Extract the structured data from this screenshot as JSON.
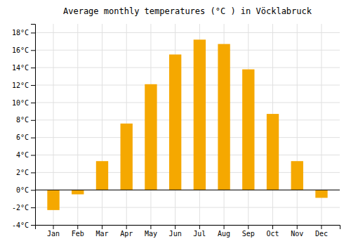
{
  "chart_data": {
    "type": "bar",
    "title": "Average monthly temperatures (°C ) in Vöcklabruck",
    "categories": [
      "Jan",
      "Feb",
      "Mar",
      "Apr",
      "May",
      "Jun",
      "Jul",
      "Aug",
      "Sep",
      "Oct",
      "Nov",
      "Dec"
    ],
    "values": [
      -2.3,
      -0.5,
      3.3,
      7.6,
      12.1,
      15.5,
      17.2,
      16.7,
      13.8,
      8.7,
      3.3,
      -0.9
    ],
    "color": "#F5A800",
    "ylim": [
      -4,
      19
    ],
    "yticks": [
      {
        "value": -4,
        "label": "-4°C"
      },
      {
        "value": -2,
        "label": "-2°C"
      },
      {
        "value": 0,
        "label": "0°C"
      },
      {
        "value": 2,
        "label": "2°C"
      },
      {
        "value": 4,
        "label": "4°C"
      },
      {
        "value": 6,
        "label": "6°C"
      },
      {
        "value": 8,
        "label": "8°C"
      },
      {
        "value": 10,
        "label": "10°C"
      },
      {
        "value": 12,
        "label": "12°C"
      },
      {
        "value": 14,
        "label": "14°C"
      },
      {
        "value": 16,
        "label": "16°C"
      },
      {
        "value": 18,
        "label": "18°C"
      }
    ],
    "grid": true
  }
}
